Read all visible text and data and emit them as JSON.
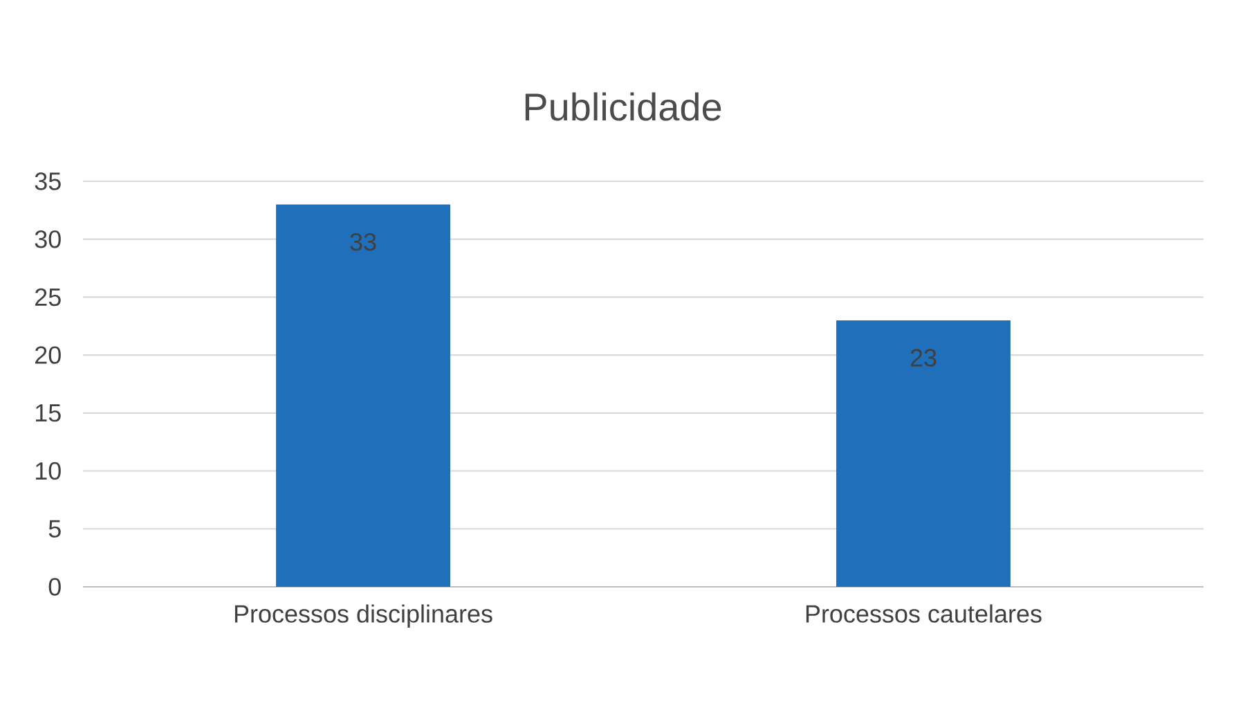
{
  "chart_data": {
    "type": "bar",
    "title": "Publicidade",
    "categories": [
      "Processos disciplinares",
      "Processos cautelares"
    ],
    "values": [
      33,
      23
    ],
    "color": "#1f6fba",
    "ylim": [
      0,
      35
    ],
    "yticks": [
      0,
      5,
      10,
      15,
      20,
      25,
      30,
      35
    ],
    "grid": "y",
    "data_labels": true
  }
}
